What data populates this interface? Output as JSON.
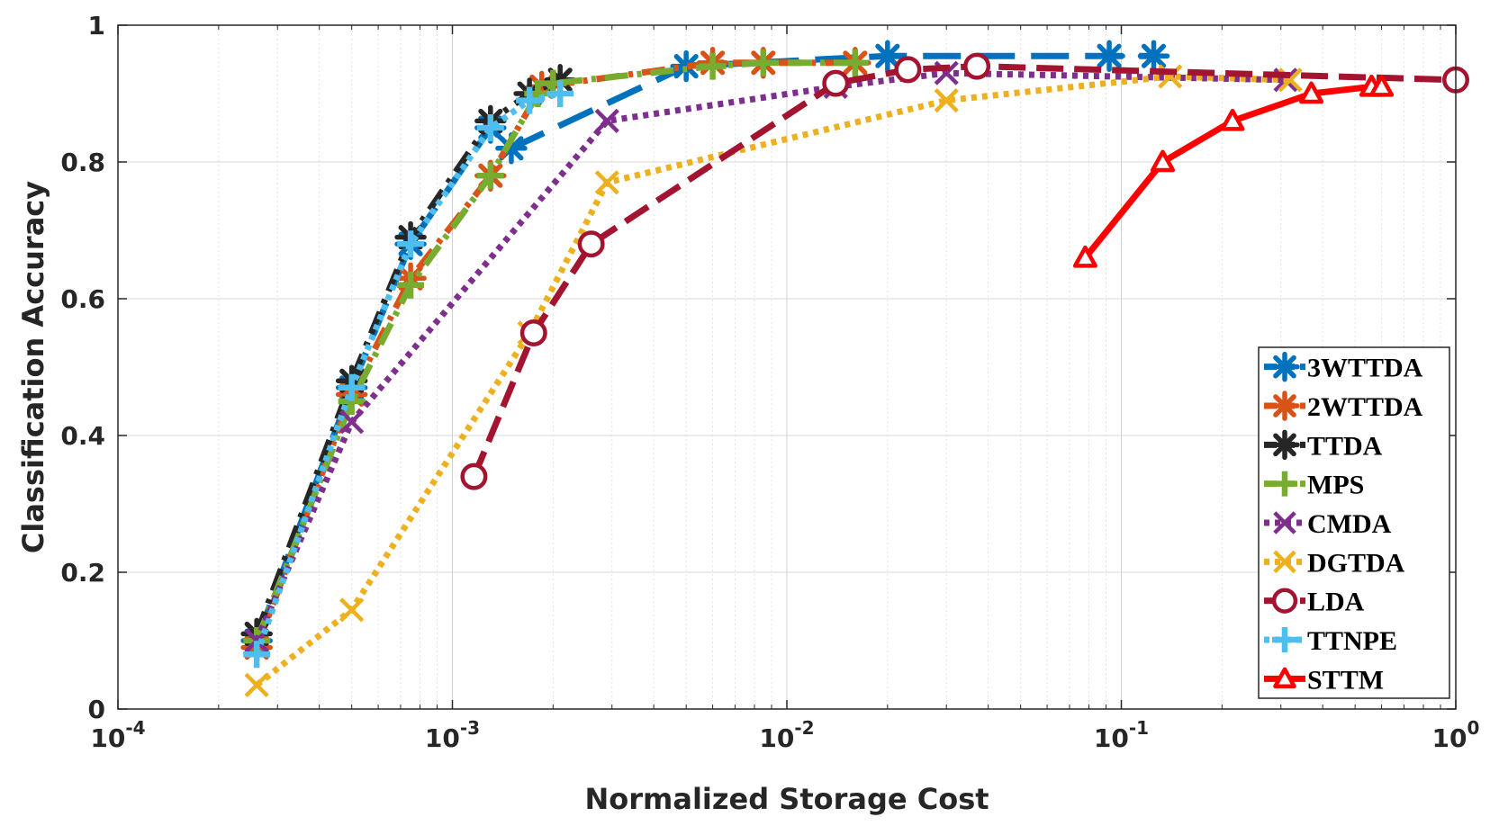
{
  "chart_data": {
    "type": "line",
    "title": "",
    "xlabel": "Normalized Storage Cost",
    "ylabel": "Classification Accuracy",
    "xscale": "log",
    "xlim": [
      0.0001,
      1
    ],
    "ylim": [
      0,
      1
    ],
    "grid": true,
    "legend_position": "bottom-right",
    "xticks": [
      {
        "value": 0.0001,
        "base": "10",
        "exp": "-4"
      },
      {
        "value": 0.001,
        "base": "10",
        "exp": "-3"
      },
      {
        "value": 0.01,
        "base": "10",
        "exp": "-2"
      },
      {
        "value": 0.1,
        "base": "10",
        "exp": "-1"
      },
      {
        "value": 1,
        "base": "10",
        "exp": "0"
      }
    ],
    "yticks": [
      {
        "value": 0,
        "label": "0"
      },
      {
        "value": 0.2,
        "label": "0.2"
      },
      {
        "value": 0.4,
        "label": "0.4"
      },
      {
        "value": 0.6,
        "label": "0.6"
      },
      {
        "value": 0.8,
        "label": "0.8"
      },
      {
        "value": 1,
        "label": "1"
      }
    ],
    "series": [
      {
        "name": "3WTTDA",
        "color": "#0072BD",
        "dash": "long",
        "marker": "asterisk",
        "x": [
          0.00026,
          0.0005,
          0.00075,
          0.0013,
          0.0015,
          0.005,
          0.02,
          0.092,
          0.125
        ],
        "y": [
          0.1,
          0.47,
          0.68,
          0.85,
          0.82,
          0.94,
          0.955,
          0.955,
          0.955
        ]
      },
      {
        "name": "2WTTDA",
        "color": "#D95319",
        "dash": "dashdot",
        "marker": "asterisk",
        "x": [
          0.00026,
          0.0005,
          0.00075,
          0.0013,
          0.00185,
          0.006,
          0.0085,
          0.016
        ],
        "y": [
          0.09,
          0.46,
          0.63,
          0.78,
          0.91,
          0.945,
          0.945,
          0.945
        ]
      },
      {
        "name": "TTDA",
        "color": "#262626",
        "dash": "dashdot",
        "marker": "asterisk",
        "x": [
          0.00026,
          0.0005,
          0.00075,
          0.0013,
          0.0017,
          0.0021
        ],
        "y": [
          0.11,
          0.48,
          0.69,
          0.86,
          0.9,
          0.92
        ]
      },
      {
        "name": "MPS",
        "color": "#77AC30",
        "dash": "dashdot",
        "marker": "plus",
        "x": [
          0.00026,
          0.0005,
          0.00075,
          0.0013,
          0.0018,
          0.002,
          0.006,
          0.0085,
          0.016
        ],
        "y": [
          0.1,
          0.45,
          0.62,
          0.78,
          0.9,
          0.915,
          0.94,
          0.945,
          0.945
        ]
      },
      {
        "name": "CMDA",
        "color": "#7E2F8E",
        "dash": "dotted",
        "marker": "x",
        "x": [
          0.00026,
          0.0005,
          0.0029,
          0.014,
          0.03,
          0.31
        ],
        "y": [
          0.1,
          0.42,
          0.86,
          0.91,
          0.93,
          0.92
        ]
      },
      {
        "name": "DGTDA",
        "color": "#EDB120",
        "dash": "dotted",
        "marker": "x",
        "x": [
          0.00026,
          0.0005,
          0.0017,
          0.0029,
          0.03,
          0.14,
          0.32
        ],
        "y": [
          0.035,
          0.145,
          0.55,
          0.77,
          0.89,
          0.925,
          0.92
        ]
      },
      {
        "name": "LDA",
        "color": "#A2142F",
        "dash": "dashed",
        "marker": "circle",
        "x": [
          0.00116,
          0.00175,
          0.0026,
          0.014,
          0.023,
          0.037,
          1.0
        ],
        "y": [
          0.34,
          0.55,
          0.68,
          0.915,
          0.935,
          0.94,
          0.92
        ]
      },
      {
        "name": "TTNPE",
        "color": "#4DBEEE",
        "dash": "dotted",
        "marker": "plus",
        "x": [
          0.00026,
          0.0005,
          0.00075,
          0.0013,
          0.0017,
          0.0021
        ],
        "y": [
          0.08,
          0.47,
          0.68,
          0.85,
          0.89,
          0.9
        ]
      },
      {
        "name": "STTM",
        "color": "#FF0000",
        "dash": "solid",
        "marker": "triangle",
        "x": [
          0.078,
          0.133,
          0.215,
          0.37,
          0.56,
          0.6
        ],
        "y": [
          0.66,
          0.8,
          0.86,
          0.9,
          0.91,
          0.91
        ]
      }
    ]
  }
}
